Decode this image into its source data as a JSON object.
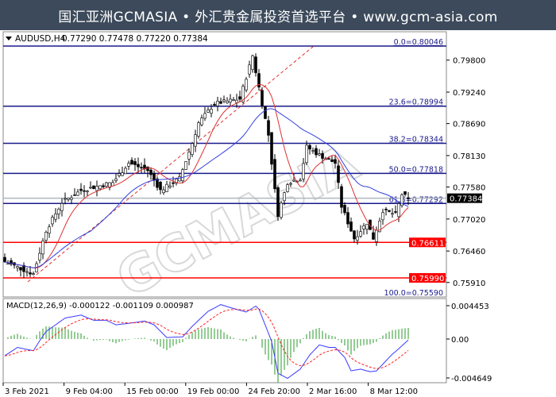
{
  "header": {
    "title": "国汇亚洲GCMASIA • 外汇贵金属投资首选平台 • www.gcm-asia.com"
  },
  "watermark": "GCMASIA",
  "colors": {
    "fib": "#1a1a8c",
    "support": "#ff0000",
    "ma_fast": "#e03030",
    "ma_slow": "#3040e0",
    "candle": "#000000",
    "macd_line": "#3a3aff",
    "signal_line": "#ff2020",
    "histogram": "#2a9a2a"
  },
  "chart_data": {
    "type": "candlestick",
    "symbol_label": "AUDUSD,H4",
    "ohlc_label": "0.77290 0.77478 0.77220 0.77384",
    "ohlc": {
      "open": 0.7729,
      "high": 0.77478,
      "low": 0.7722,
      "close": 0.77384
    },
    "y_ticks": [
      "0.79800",
      "0.79240",
      "0.78690",
      "0.78130",
      "0.77580",
      "0.77020",
      "0.76460",
      "0.75910"
    ],
    "ylim": [
      0.7558,
      0.8015
    ],
    "current_price": "0.77384",
    "x_ticks": [
      "3 Feb 2021",
      "9 Feb 04:00",
      "15 Feb 00:00",
      "19 Feb 00:00",
      "24 Feb 20:00",
      "2 Mar 16:00",
      "8 Mar 12:00"
    ],
    "close_path": [
      [
        0,
        0.7627
      ],
      [
        9,
        0.7606
      ],
      [
        13,
        0.7682
      ],
      [
        18,
        0.7731
      ],
      [
        24,
        0.7752
      ],
      [
        34,
        0.7766
      ],
      [
        39,
        0.78
      ],
      [
        45,
        0.7787
      ],
      [
        49,
        0.7752
      ],
      [
        55,
        0.7773
      ],
      [
        59,
        0.7835
      ],
      [
        61,
        0.787
      ],
      [
        66,
        0.7904
      ],
      [
        74,
        0.7912
      ],
      [
        78,
        0.7988
      ],
      [
        80,
        0.7932
      ],
      [
        83,
        0.7849
      ],
      [
        85,
        0.7752
      ],
      [
        86,
        0.771
      ],
      [
        89,
        0.7766
      ],
      [
        93,
        0.7773
      ],
      [
        95,
        0.7828
      ],
      [
        99,
        0.7814
      ],
      [
        104,
        0.78
      ],
      [
        106,
        0.7724
      ],
      [
        110,
        0.7668
      ],
      [
        114,
        0.7696
      ],
      [
        116,
        0.7668
      ],
      [
        119,
        0.7717
      ],
      [
        123,
        0.771
      ],
      [
        125,
        0.7745
      ],
      [
        127,
        0.7738
      ]
    ],
    "fib_levels": [
      {
        "label": "0.0=0.80046",
        "price": 0.80046
      },
      {
        "label": "23.6=0.78994",
        "price": 0.78994
      },
      {
        "label": "38.2=0.78344",
        "price": 0.78344
      },
      {
        "label": "50.0=0.77818",
        "price": 0.77818
      },
      {
        "label": "61.8=0.77292",
        "price": 0.77292
      },
      {
        "label": "100.0=0.75590",
        "price": 0.7559
      }
    ],
    "support_levels": [
      {
        "label": "0.76611",
        "price": 0.76611
      },
      {
        "label": "0.75990",
        "price": 0.7599
      }
    ],
    "macd": {
      "label": "MACD(12,26,9) -0.000122 -0.001109 0.000987",
      "y_ticks": [
        "0.004453",
        "0.00",
        "-0.004649"
      ],
      "ylim": [
        -0.004649,
        0.004453
      ],
      "main_path": [
        [
          0,
          -0.002
        ],
        [
          4,
          -0.001
        ],
        [
          9,
          -0.0014
        ],
        [
          13,
          0.001
        ],
        [
          19,
          0.0028
        ],
        [
          24,
          0.0032
        ],
        [
          28,
          0.0025
        ],
        [
          32,
          0.0025
        ],
        [
          35,
          0.0019
        ],
        [
          39,
          0.0021
        ],
        [
          44,
          0.0024
        ],
        [
          47,
          0.0019
        ],
        [
          51,
          0.0002
        ],
        [
          56,
          0.0003
        ],
        [
          59,
          0.0017
        ],
        [
          64,
          0.0037
        ],
        [
          68,
          0.0046
        ],
        [
          71,
          0.0042
        ],
        [
          76,
          0.0036
        ],
        [
          79,
          0.0044
        ],
        [
          80,
          0.004
        ],
        [
          84,
          -0.0003
        ],
        [
          86,
          -0.0041
        ],
        [
          89,
          -0.0047
        ],
        [
          93,
          -0.0036
        ],
        [
          96,
          -0.0019
        ],
        [
          99,
          -0.0007
        ],
        [
          102,
          -0.001
        ],
        [
          104,
          -0.001
        ],
        [
          107,
          -0.0022
        ],
        [
          109,
          -0.0038
        ],
        [
          112,
          -0.0036
        ],
        [
          115,
          -0.0039
        ],
        [
          117,
          -0.0038
        ],
        [
          122,
          -0.0018
        ],
        [
          123,
          -0.0015
        ],
        [
          127,
          -0.000122
        ]
      ]
    }
  }
}
